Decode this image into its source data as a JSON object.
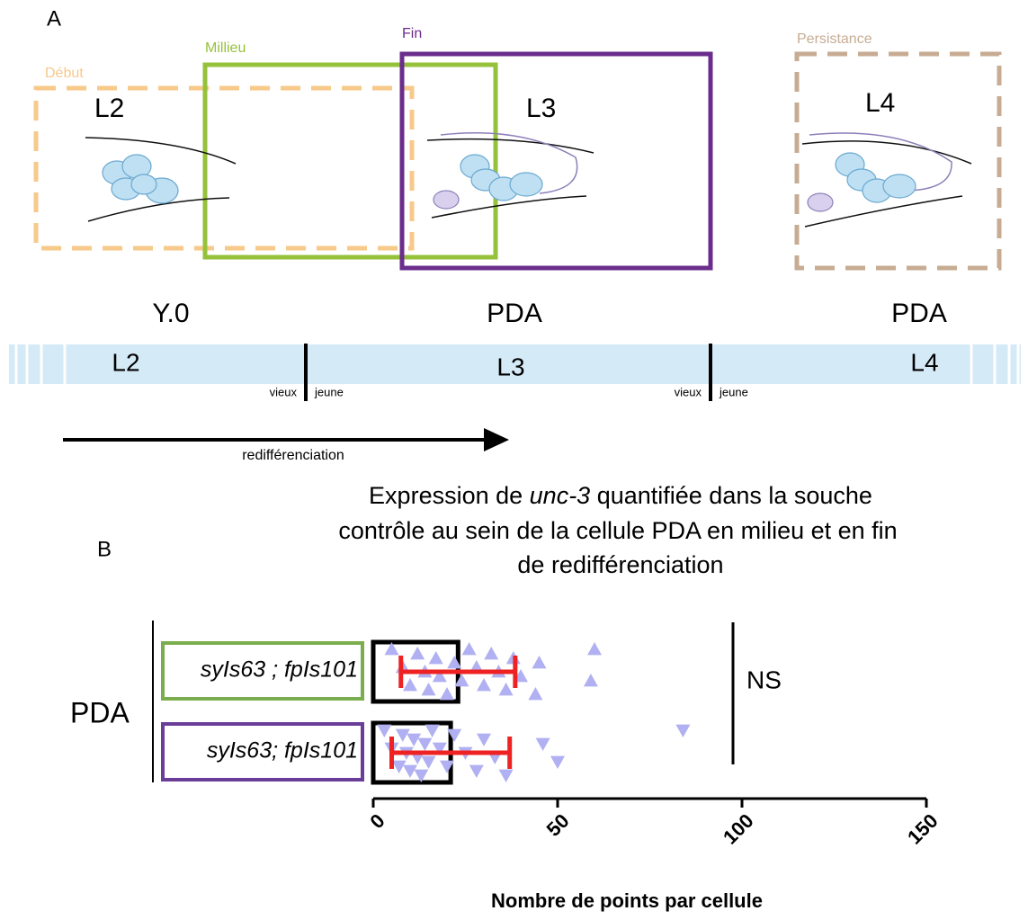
{
  "panel_a": {
    "label": "A",
    "boxes": [
      {
        "name": "Début",
        "stage": "L2"
      },
      {
        "name": "Millieu",
        "stage": null
      },
      {
        "name": "Fin",
        "stage": "L3"
      },
      {
        "name": "Persistance",
        "stage": "L4"
      }
    ],
    "cells": [
      "Y.0",
      "PDA",
      "PDA"
    ],
    "timeline": {
      "stages": [
        "L2",
        "L3",
        "L4"
      ],
      "marks": [
        "vieux",
        "jeune",
        "vieux",
        "jeune"
      ]
    },
    "arrow_label": "redifférenciation"
  },
  "chart_data": {
    "type": "bar",
    "panel_label": "B",
    "title": {
      "line1": [
        "Expression de ",
        "unc-3",
        " quantifiée dans la souche"
      ],
      "line2": "contrôle au sein de la cellule PDA en milieu et en fin",
      "line3": "de redifférenciation"
    },
    "group": "PDA",
    "categories": [
      "syIs63 ; fpIs101",
      "syIs63; fpIs101"
    ],
    "label_box_colors": [
      "#7aad4e",
      "#6a3d98"
    ],
    "values": [
      23,
      21
    ],
    "errors": [
      15.5,
      16
    ],
    "error_color": "#ee2222",
    "point_color": "#b0b0f2",
    "markers": [
      "triangle-up",
      "triangle-down"
    ],
    "points": [
      [
        5,
        8,
        10,
        12,
        14,
        15,
        17,
        18,
        20,
        22,
        24,
        26,
        28,
        30,
        32,
        34,
        36,
        38,
        40,
        44,
        45,
        59,
        60
      ],
      [
        3,
        5,
        7,
        8,
        9,
        10,
        11,
        12,
        13,
        14,
        15,
        16,
        18,
        20,
        22,
        25,
        28,
        30,
        33,
        36,
        46,
        50,
        84
      ]
    ],
    "annotation": "NS",
    "xlim": [
      0,
      150
    ],
    "xticks": [
      0,
      50,
      100,
      150
    ],
    "xlabel": "Nombre de points par cellule"
  }
}
